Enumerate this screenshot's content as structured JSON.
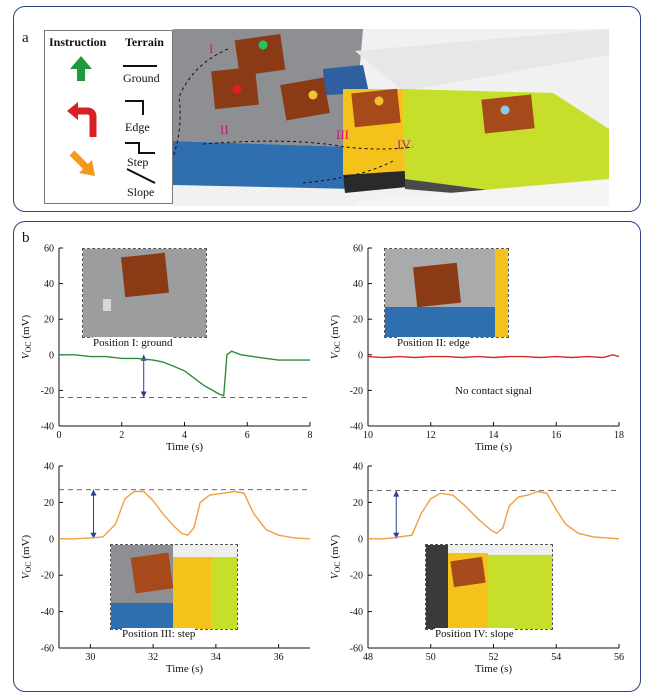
{
  "panel_a": {
    "label": "a",
    "legend": {
      "instruction_header": "Instruction",
      "terrain_header": "Terrain",
      "terrains": [
        "Ground",
        "Edge",
        "Step",
        "Slope"
      ]
    },
    "positions": [
      "I",
      "II",
      "III",
      "IV"
    ],
    "colors": {
      "green_arrow": "#1f9a3c",
      "red_arrow": "#d82027",
      "orange_arrow": "#f39a1c",
      "marker_green": "#22c55e",
      "marker_red": "#e11d2a",
      "marker_yellow": "#f2c230",
      "marker_blue": "#8ec8e8"
    }
  },
  "panel_b": {
    "label": "b"
  },
  "chart_data": [
    {
      "type": "line",
      "title": "Position I: ground",
      "xlabel": "Time (s)",
      "ylabel": "VOC (mV)",
      "ylabel_main": "V",
      "ylabel_sub": "OC",
      "ylabel_unit": " (mV)",
      "xlim": [
        0,
        8
      ],
      "ylim": [
        -40,
        60
      ],
      "xticks": [
        0,
        2,
        4,
        6,
        8
      ],
      "yticks": [
        -40,
        -20,
        0,
        20,
        40,
        60
      ],
      "color": "#2e8b3a",
      "reference_line": -24,
      "arrow": {
        "x": 2.7,
        "from": 0,
        "to": -24
      },
      "series": [
        {
          "name": "Position I",
          "x": [
            0,
            0.5,
            1,
            1.5,
            2,
            2.5,
            3,
            3.3,
            3.6,
            4,
            4.3,
            4.6,
            4.9,
            5.1,
            5.25,
            5.3,
            5.35,
            5.5,
            5.8,
            6.2,
            6.6,
            7,
            7.5,
            8
          ],
          "y": [
            0,
            0,
            -1,
            -1,
            -2,
            -2,
            -3,
            -4,
            -6,
            -9,
            -13,
            -17,
            -20,
            -22,
            -23,
            -12,
            0,
            2,
            0,
            -1,
            -2,
            -3,
            -3,
            -3
          ]
        }
      ]
    },
    {
      "type": "line",
      "title": "Position II: edge",
      "xlabel": "Time (s)",
      "ylabel": "VOC (mV)",
      "ylabel_main": "V",
      "ylabel_sub": "OC",
      "ylabel_unit": " (mV)",
      "xlim": [
        10,
        18
      ],
      "ylim": [
        -40,
        60
      ],
      "xticks": [
        10,
        12,
        14,
        16,
        18
      ],
      "yticks": [
        -40,
        -20,
        0,
        20,
        40,
        60
      ],
      "color": "#d62b2b",
      "annotation": "No contact signal",
      "series": [
        {
          "name": "Position II",
          "x": [
            10,
            10.5,
            11,
            11.5,
            12,
            12.5,
            13,
            13.5,
            14,
            14.5,
            15,
            15.5,
            16,
            16.5,
            17,
            17.5,
            17.8,
            18
          ],
          "y": [
            -1,
            -1.5,
            -1,
            -1.5,
            -1,
            -1,
            -1.5,
            -1,
            -1.5,
            -1,
            -1,
            -1.5,
            -1,
            -1.5,
            -1,
            -1.5,
            0,
            -1
          ]
        }
      ]
    },
    {
      "type": "line",
      "title": "Position III: step",
      "xlabel": "Time (s)",
      "ylabel": "VOC (mV)",
      "ylabel_main": "V",
      "ylabel_sub": "OC",
      "ylabel_unit": " (mV)",
      "xlim": [
        29,
        37
      ],
      "ylim": [
        -60,
        40
      ],
      "xticks": [
        30,
        32,
        34,
        36
      ],
      "yticks": [
        -60,
        -40,
        -20,
        0,
        20,
        40
      ],
      "color": "#f0a040",
      "reference_line": 27,
      "arrow": {
        "x": 30.1,
        "from": 0,
        "to": 27
      },
      "series": [
        {
          "name": "Position III",
          "x": [
            29,
            29.5,
            30,
            30.4,
            30.8,
            31.1,
            31.4,
            31.7,
            32,
            32.3,
            32.6,
            32.9,
            33.1,
            33.3,
            33.5,
            33.8,
            34.2,
            34.6,
            34.9,
            35.2,
            35.6,
            36,
            36.5,
            37
          ],
          "y": [
            0,
            0,
            0.5,
            1,
            8,
            22,
            26,
            26,
            21,
            14,
            8,
            3,
            2,
            6,
            20,
            24,
            25,
            26,
            25,
            14,
            5,
            2,
            0.5,
            0
          ]
        }
      ]
    },
    {
      "type": "line",
      "title": "Position IV: slope",
      "xlabel": "Time (s)",
      "ylabel": "VOC (mV)",
      "ylabel_main": "V",
      "ylabel_sub": "OC",
      "ylabel_unit": " (mV)",
      "xlim": [
        48,
        56
      ],
      "ylim": [
        -60,
        40
      ],
      "xticks": [
        48,
        50,
        52,
        54,
        56
      ],
      "yticks": [
        -60,
        -40,
        -20,
        0,
        20,
        40
      ],
      "color": "#f0a040",
      "reference_line": 26.5,
      "arrow": {
        "x": 48.9,
        "from": 0,
        "to": 26.5
      },
      "series": [
        {
          "name": "Position IV",
          "x": [
            48,
            48.5,
            49,
            49.4,
            49.7,
            50,
            50.3,
            50.7,
            51.1,
            51.5,
            51.9,
            52.1,
            52.3,
            52.5,
            52.8,
            53.1,
            53.4,
            53.7,
            54,
            54.3,
            54.7,
            55.2,
            55.6,
            56
          ],
          "y": [
            0,
            0,
            1,
            2,
            14,
            22,
            25,
            24,
            18,
            11,
            5,
            3,
            6,
            18,
            23,
            24,
            26,
            25,
            16,
            8,
            3,
            1,
            0.5,
            0
          ]
        }
      ]
    }
  ]
}
